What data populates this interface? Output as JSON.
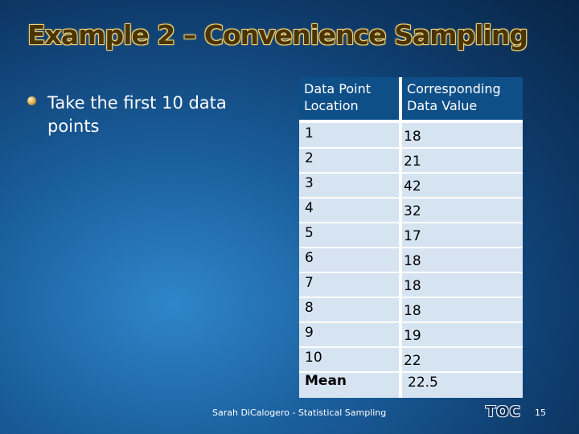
{
  "title": "Example 2 – Convenience Sampling",
  "bullet": "Take the first 10 data points",
  "table": {
    "headers": [
      "Data Point Location",
      "Corresponding Data Value"
    ],
    "rows": [
      [
        "1",
        "18"
      ],
      [
        "2",
        "21"
      ],
      [
        "3",
        "42"
      ],
      [
        "4",
        "32"
      ],
      [
        "5",
        "17"
      ],
      [
        "6",
        "18"
      ],
      [
        "7",
        "18"
      ],
      [
        "8",
        "18"
      ],
      [
        "9",
        "19"
      ],
      [
        "10",
        "22"
      ]
    ],
    "mean_label": "Mean",
    "mean_value": "22.5"
  },
  "footer": "Sarah DiCalogero - Statistical Sampling",
  "toc_label": "TOC",
  "page_number": "15",
  "colors": {
    "header_bg": "#0f4f88",
    "body_bg": "#d6e4f2",
    "title_fill": "#4a3400",
    "title_outline": "#f0d27a"
  }
}
